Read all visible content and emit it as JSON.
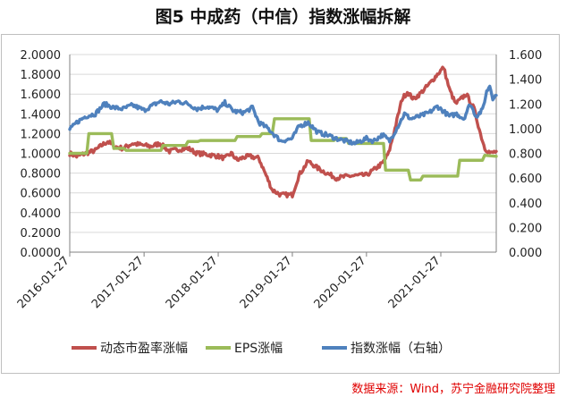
{
  "title": "图5 中成药（中信）指数涨幅拆解",
  "source": "数据来源：Wind，苏宁金融研究院整理",
  "chart_data": {
    "type": "line",
    "x_type": "date",
    "x_range": [
      "2016-01-27",
      "2021-10-27"
    ],
    "x_ticks": [
      "2016-01-27",
      "2017-01-27",
      "2018-01-27",
      "2019-01-27",
      "2020-01-27",
      "2021-01-27"
    ],
    "y_left": {
      "ylim": [
        0,
        2.0
      ],
      "ticks": [
        "0.0000",
        "0.2000",
        "0.4000",
        "0.6000",
        "0.8000",
        "1.0000",
        "1.2000",
        "1.4000",
        "1.6000",
        "1.8000",
        "2.0000"
      ]
    },
    "y_right": {
      "ylim": [
        0,
        1.6
      ],
      "ticks": [
        "0.000",
        "0.200",
        "0.400",
        "0.600",
        "0.800",
        "1.000",
        "1.200",
        "1.400",
        "1.600"
      ]
    },
    "grid": true,
    "legend_position": "bottom",
    "series": [
      {
        "name": "动态市盈率涨幅",
        "color": "#c0504d",
        "axis": "left",
        "points": [
          [
            "2016-01-27",
            1.0
          ],
          [
            "2016-03-01",
            0.97
          ],
          [
            "2016-04-15",
            1.0
          ],
          [
            "2016-06-01",
            1.03
          ],
          [
            "2016-07-01",
            1.08
          ],
          [
            "2016-08-01",
            1.12
          ],
          [
            "2016-09-01",
            1.07
          ],
          [
            "2016-10-15",
            1.05
          ],
          [
            "2016-12-01",
            1.1
          ],
          [
            "2017-01-27",
            1.08
          ],
          [
            "2017-03-01",
            1.07
          ],
          [
            "2017-04-15",
            1.1
          ],
          [
            "2017-06-01",
            1.02
          ],
          [
            "2017-07-15",
            1.04
          ],
          [
            "2017-09-01",
            1.05
          ],
          [
            "2017-10-15",
            1.0
          ],
          [
            "2017-12-01",
            0.99
          ],
          [
            "2018-01-27",
            0.97
          ],
          [
            "2018-03-01",
            0.95
          ],
          [
            "2018-04-01",
            1.0
          ],
          [
            "2018-05-01",
            0.93
          ],
          [
            "2018-06-01",
            0.96
          ],
          [
            "2018-07-01",
            0.97
          ],
          [
            "2018-08-15",
            0.95
          ],
          [
            "2018-09-15",
            0.8
          ],
          [
            "2018-10-20",
            0.63
          ],
          [
            "2018-12-01",
            0.58
          ],
          [
            "2019-01-27",
            0.58
          ],
          [
            "2019-03-01",
            0.78
          ],
          [
            "2019-04-15",
            0.92
          ],
          [
            "2019-06-01",
            0.85
          ],
          [
            "2019-07-15",
            0.8
          ],
          [
            "2019-09-01",
            0.75
          ],
          [
            "2019-11-01",
            0.77
          ],
          [
            "2020-01-27",
            0.78
          ],
          [
            "2020-03-01",
            0.83
          ],
          [
            "2020-04-15",
            0.9
          ],
          [
            "2020-05-15",
            1.0
          ],
          [
            "2020-06-15",
            1.25
          ],
          [
            "2020-07-20",
            1.55
          ],
          [
            "2020-08-15",
            1.62
          ],
          [
            "2020-09-15",
            1.55
          ],
          [
            "2020-10-15",
            1.6
          ],
          [
            "2020-12-01",
            1.7
          ],
          [
            "2021-01-10",
            1.8
          ],
          [
            "2021-02-10",
            1.87
          ],
          [
            "2021-03-10",
            1.65
          ],
          [
            "2021-04-10",
            1.5
          ],
          [
            "2021-06-01",
            1.6
          ],
          [
            "2021-07-10",
            1.45
          ],
          [
            "2021-08-10",
            1.2
          ],
          [
            "2021-09-01",
            1.05
          ],
          [
            "2021-10-01",
            1.0
          ],
          [
            "2021-10-27",
            1.02
          ]
        ]
      },
      {
        "name": "EPS涨幅",
        "color": "#9bbb59",
        "axis": "left",
        "points": [
          [
            "2016-01-27",
            1.0
          ],
          [
            "2016-04-20",
            1.0
          ],
          [
            "2016-04-30",
            1.2
          ],
          [
            "2016-08-20",
            1.2
          ],
          [
            "2016-08-31",
            1.05
          ],
          [
            "2016-10-20",
            1.05
          ],
          [
            "2016-10-31",
            1.03
          ],
          [
            "2017-04-20",
            1.03
          ],
          [
            "2017-04-30",
            1.08
          ],
          [
            "2017-08-20",
            1.08
          ],
          [
            "2017-08-31",
            1.12
          ],
          [
            "2017-10-20",
            1.12
          ],
          [
            "2017-10-31",
            1.13
          ],
          [
            "2018-04-20",
            1.13
          ],
          [
            "2018-04-30",
            1.17
          ],
          [
            "2018-08-20",
            1.17
          ],
          [
            "2018-08-31",
            1.2
          ],
          [
            "2018-10-20",
            1.2
          ],
          [
            "2018-10-31",
            1.35
          ],
          [
            "2019-04-20",
            1.35
          ],
          [
            "2019-04-30",
            1.13
          ],
          [
            "2019-08-20",
            1.13
          ],
          [
            "2019-08-31",
            1.15
          ],
          [
            "2019-10-20",
            1.15
          ],
          [
            "2019-10-31",
            1.1
          ],
          [
            "2020-04-20",
            1.1
          ],
          [
            "2020-04-30",
            0.83
          ],
          [
            "2020-08-20",
            0.83
          ],
          [
            "2020-08-31",
            0.73
          ],
          [
            "2020-10-20",
            0.73
          ],
          [
            "2020-10-31",
            0.77
          ],
          [
            "2021-04-20",
            0.77
          ],
          [
            "2021-04-30",
            0.93
          ],
          [
            "2021-08-20",
            0.93
          ],
          [
            "2021-08-31",
            0.98
          ],
          [
            "2021-10-27",
            0.97
          ]
        ]
      },
      {
        "name": "指数涨幅（右轴）",
        "color": "#4f81bd",
        "axis": "right",
        "points": [
          [
            "2016-01-27",
            0.99
          ],
          [
            "2016-03-01",
            1.05
          ],
          [
            "2016-04-15",
            1.1
          ],
          [
            "2016-06-01",
            1.12
          ],
          [
            "2016-07-15",
            1.2
          ],
          [
            "2016-09-01",
            1.17
          ],
          [
            "2016-10-15",
            1.16
          ],
          [
            "2016-12-01",
            1.19
          ],
          [
            "2017-01-27",
            1.15
          ],
          [
            "2017-03-01",
            1.18
          ],
          [
            "2017-04-15",
            1.22
          ],
          [
            "2017-06-01",
            1.2
          ],
          [
            "2017-07-15",
            1.22
          ],
          [
            "2017-09-01",
            1.2
          ],
          [
            "2017-10-15",
            1.16
          ],
          [
            "2017-12-01",
            1.18
          ],
          [
            "2018-01-27",
            1.15
          ],
          [
            "2018-03-01",
            1.21
          ],
          [
            "2018-04-15",
            1.14
          ],
          [
            "2018-06-01",
            1.13
          ],
          [
            "2018-07-15",
            1.17
          ],
          [
            "2018-08-15",
            1.05
          ],
          [
            "2018-10-01",
            1.0
          ],
          [
            "2018-10-30",
            0.95
          ],
          [
            "2018-12-01",
            0.9
          ],
          [
            "2019-01-27",
            0.92
          ],
          [
            "2019-03-01",
            1.02
          ],
          [
            "2019-04-15",
            1.05
          ],
          [
            "2019-06-01",
            0.97
          ],
          [
            "2019-07-15",
            0.95
          ],
          [
            "2019-09-01",
            0.92
          ],
          [
            "2019-10-15",
            0.9
          ],
          [
            "2019-12-01",
            0.88
          ],
          [
            "2020-01-27",
            0.92
          ],
          [
            "2020-03-01",
            0.9
          ],
          [
            "2020-04-15",
            0.95
          ],
          [
            "2020-05-20",
            0.9
          ],
          [
            "2020-06-30",
            1.02
          ],
          [
            "2020-08-01",
            1.12
          ],
          [
            "2020-09-01",
            1.08
          ],
          [
            "2020-10-15",
            1.1
          ],
          [
            "2020-12-01",
            1.13
          ],
          [
            "2021-01-10",
            1.18
          ],
          [
            "2021-02-10",
            1.14
          ],
          [
            "2021-03-10",
            1.1
          ],
          [
            "2021-04-15",
            1.12
          ],
          [
            "2021-05-20",
            1.08
          ],
          [
            "2021-06-20",
            1.2
          ],
          [
            "2021-07-20",
            1.1
          ],
          [
            "2021-08-20",
            1.15
          ],
          [
            "2021-09-10",
            1.3
          ],
          [
            "2021-09-25",
            1.35
          ],
          [
            "2021-10-10",
            1.25
          ],
          [
            "2021-10-27",
            1.27
          ]
        ]
      }
    ]
  }
}
